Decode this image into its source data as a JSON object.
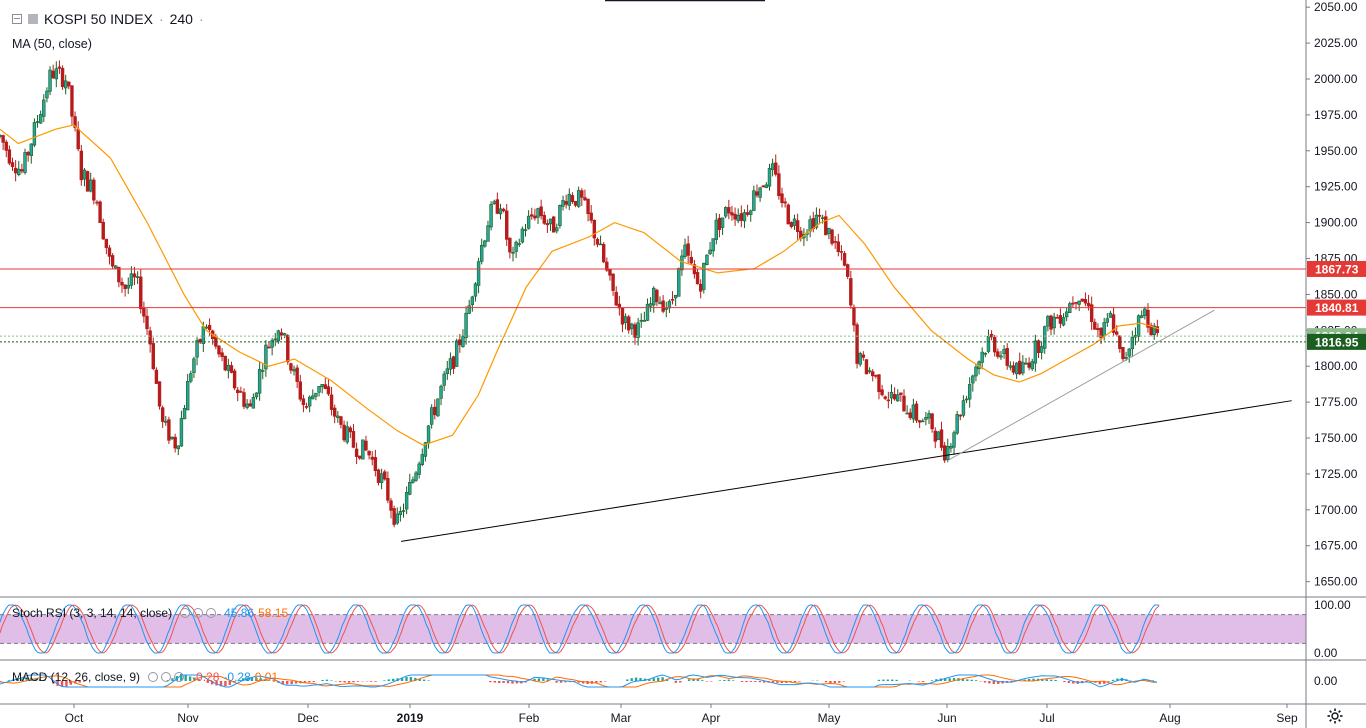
{
  "header": {
    "symbol": "KOSPI 50 INDEX",
    "interval": "240",
    "separator": "·"
  },
  "ma_label": "MA (50, close)",
  "stoch_label": {
    "text": "Stoch RSI (3, 3, 14, 14, close)",
    "k_value": "45.86",
    "d_value": "58.15"
  },
  "macd_label": {
    "text": "MACD (12, 26, close, 9)",
    "histogram": "-0.28",
    "macd": "-0.28",
    "signal": "0.01"
  },
  "icons": {
    "collapse": "collapse-icon",
    "settings": "gear-icon"
  },
  "colors": {
    "up": "#26a69a",
    "up_body": "#1b5e20",
    "down": "#b71c1c",
    "ma": "#ff9800",
    "resistance": "#e53935",
    "support": "#1b5e20",
    "last_price": "#8fbc8f",
    "stoch_k": "#2196f3",
    "stoch_d": "#ef5350",
    "stoch_band": "#e1bee7"
  },
  "chart_data": {
    "type": "candlestick",
    "title": "KOSPI 50 INDEX · 240",
    "x_axis": {
      "ticks": [
        "Oct",
        "Nov",
        "Dec",
        "2019",
        "Feb",
        "Mar",
        "Apr",
        "May",
        "Jun",
        "Jul",
        "Aug",
        "Sep"
      ]
    },
    "y_axis": {
      "range": [
        1640,
        2055
      ],
      "ticks": [
        1650,
        1675,
        1700,
        1725,
        1750,
        1775,
        1800,
        1825,
        1850,
        1875,
        1900,
        1925,
        1950,
        1975,
        2000,
        2025,
        2050
      ],
      "tick_labels": [
        "1650.00",
        "1675.00",
        "1700.00",
        "1725.00",
        "1750.00",
        "1775.00",
        "1800.00",
        "1825.00",
        "1850.00",
        "1875.00",
        "1900.00",
        "1925.00",
        "1950.00",
        "1975.00",
        "2000.00",
        "2025.00",
        "2050.00"
      ]
    },
    "price_path": [
      {
        "t": 0.0,
        "p": 1960
      },
      {
        "t": 0.3,
        "p": 1945
      },
      {
        "t": 0.6,
        "p": 1935
      },
      {
        "t": 1.0,
        "p": 1970
      },
      {
        "t": 1.4,
        "p": 2005
      },
      {
        "t": 1.8,
        "p": 2000
      },
      {
        "t": 2.2,
        "p": 1935
      },
      {
        "t": 2.6,
        "p": 1920
      },
      {
        "t": 3.0,
        "p": 1870
      },
      {
        "t": 3.4,
        "p": 1855
      },
      {
        "t": 3.7,
        "p": 1860
      },
      {
        "t": 4.1,
        "p": 1815
      },
      {
        "t": 4.4,
        "p": 1760
      },
      {
        "t": 4.8,
        "p": 1745
      },
      {
        "t": 5.2,
        "p": 1800
      },
      {
        "t": 5.6,
        "p": 1830
      },
      {
        "t": 5.9,
        "p": 1810
      },
      {
        "t": 6.3,
        "p": 1790
      },
      {
        "t": 6.8,
        "p": 1770
      },
      {
        "t": 7.2,
        "p": 1810
      },
      {
        "t": 7.6,
        "p": 1830
      },
      {
        "t": 7.9,
        "p": 1800
      },
      {
        "t": 8.3,
        "p": 1770
      },
      {
        "t": 8.7,
        "p": 1790
      },
      {
        "t": 9.2,
        "p": 1760
      },
      {
        "t": 9.6,
        "p": 1745
      },
      {
        "t": 10.0,
        "p": 1740
      },
      {
        "t": 10.4,
        "p": 1720
      },
      {
        "t": 10.8,
        "p": 1690
      },
      {
        "t": 11.2,
        "p": 1720
      },
      {
        "t": 11.6,
        "p": 1755
      },
      {
        "t": 12.0,
        "p": 1785
      },
      {
        "t": 12.4,
        "p": 1810
      },
      {
        "t": 12.7,
        "p": 1835
      },
      {
        "t": 13.0,
        "p": 1875
      },
      {
        "t": 13.3,
        "p": 1905
      },
      {
        "t": 13.6,
        "p": 1915
      },
      {
        "t": 13.9,
        "p": 1870
      },
      {
        "t": 14.2,
        "p": 1895
      },
      {
        "t": 14.6,
        "p": 1910
      },
      {
        "t": 15.0,
        "p": 1895
      },
      {
        "t": 15.4,
        "p": 1920
      },
      {
        "t": 15.8,
        "p": 1915
      },
      {
        "t": 16.2,
        "p": 1890
      },
      {
        "t": 16.6,
        "p": 1855
      },
      {
        "t": 17.0,
        "p": 1830
      },
      {
        "t": 17.4,
        "p": 1825
      },
      {
        "t": 17.8,
        "p": 1850
      },
      {
        "t": 18.2,
        "p": 1840
      },
      {
        "t": 18.6,
        "p": 1880
      },
      {
        "t": 19.0,
        "p": 1855
      },
      {
        "t": 19.4,
        "p": 1895
      },
      {
        "t": 19.8,
        "p": 1910
      },
      {
        "t": 20.2,
        "p": 1905
      },
      {
        "t": 20.6,
        "p": 1925
      },
      {
        "t": 21.0,
        "p": 1935
      },
      {
        "t": 21.4,
        "p": 1905
      },
      {
        "t": 21.8,
        "p": 1895
      },
      {
        "t": 22.2,
        "p": 1905
      },
      {
        "t": 22.6,
        "p": 1890
      },
      {
        "t": 23.0,
        "p": 1865
      },
      {
        "t": 23.3,
        "p": 1805
      },
      {
        "t": 23.7,
        "p": 1795
      },
      {
        "t": 24.1,
        "p": 1780
      },
      {
        "t": 24.5,
        "p": 1775
      },
      {
        "t": 24.9,
        "p": 1765
      },
      {
        "t": 25.3,
        "p": 1760
      },
      {
        "t": 25.7,
        "p": 1740
      },
      {
        "t": 26.1,
        "p": 1770
      },
      {
        "t": 26.5,
        "p": 1800
      },
      {
        "t": 26.9,
        "p": 1820
      },
      {
        "t": 27.3,
        "p": 1805
      },
      {
        "t": 27.7,
        "p": 1795
      },
      {
        "t": 28.1,
        "p": 1810
      },
      {
        "t": 28.5,
        "p": 1830
      },
      {
        "t": 28.9,
        "p": 1838
      },
      {
        "t": 29.3,
        "p": 1852
      },
      {
        "t": 29.6,
        "p": 1840
      },
      {
        "t": 29.9,
        "p": 1820
      },
      {
        "t": 30.2,
        "p": 1835
      },
      {
        "t": 30.5,
        "p": 1800
      },
      {
        "t": 30.8,
        "p": 1825
      },
      {
        "t": 31.1,
        "p": 1838
      },
      {
        "t": 31.5,
        "p": 1817
      }
    ],
    "ma50": [
      {
        "t": 0.0,
        "p": 1965
      },
      {
        "t": 0.5,
        "p": 1955
      },
      {
        "t": 1.5,
        "p": 1965
      },
      {
        "t": 2.0,
        "p": 1968
      },
      {
        "t": 3.0,
        "p": 1945
      },
      {
        "t": 4.0,
        "p": 1900
      },
      {
        "t": 5.0,
        "p": 1850
      },
      {
        "t": 5.6,
        "p": 1825
      },
      {
        "t": 6.5,
        "p": 1810
      },
      {
        "t": 7.3,
        "p": 1800
      },
      {
        "t": 8.0,
        "p": 1805
      },
      {
        "t": 9.0,
        "p": 1790
      },
      {
        "t": 10.0,
        "p": 1770
      },
      {
        "t": 10.8,
        "p": 1755
      },
      {
        "t": 11.5,
        "p": 1745
      },
      {
        "t": 12.3,
        "p": 1752
      },
      {
        "t": 13.0,
        "p": 1780
      },
      {
        "t": 13.5,
        "p": 1810
      },
      {
        "t": 14.3,
        "p": 1855
      },
      {
        "t": 15.0,
        "p": 1880
      },
      {
        "t": 16.0,
        "p": 1890
      },
      {
        "t": 16.7,
        "p": 1900
      },
      {
        "t": 17.5,
        "p": 1893
      },
      {
        "t": 18.5,
        "p": 1873
      },
      {
        "t": 19.5,
        "p": 1865
      },
      {
        "t": 20.5,
        "p": 1868
      },
      {
        "t": 21.3,
        "p": 1880
      },
      {
        "t": 22.3,
        "p": 1900
      },
      {
        "t": 22.8,
        "p": 1905
      },
      {
        "t": 23.5,
        "p": 1885
      },
      {
        "t": 24.3,
        "p": 1855
      },
      {
        "t": 25.3,
        "p": 1825
      },
      {
        "t": 26.3,
        "p": 1805
      },
      {
        "t": 27.0,
        "p": 1794
      },
      {
        "t": 27.7,
        "p": 1789
      },
      {
        "t": 28.3,
        "p": 1795
      },
      {
        "t": 29.0,
        "p": 1805
      },
      {
        "t": 29.7,
        "p": 1815
      },
      {
        "t": 30.4,
        "p": 1828
      },
      {
        "t": 31.0,
        "p": 1830
      },
      {
        "t": 31.5,
        "p": 1826
      }
    ],
    "horizontal_levels": [
      {
        "value": 1867.73,
        "label": "1867.73",
        "style": "resistance"
      },
      {
        "value": 1840.81,
        "label": "1840.81",
        "style": "resistance"
      },
      {
        "value": 1820.94,
        "label": "1820.94",
        "style": "last_price"
      },
      {
        "value": 1816.95,
        "label": "1816.95",
        "style": "support"
      }
    ],
    "trendlines": [
      {
        "from": {
          "t": 10.9,
          "p": 1678
        },
        "to": {
          "t": 35.1,
          "p": 1776
        },
        "color": "#000000"
      },
      {
        "from": {
          "t": 25.8,
          "p": 1735
        },
        "to": {
          "t": 33.0,
          "p": 1839
        },
        "color": "#9e9e9e"
      }
    ],
    "stoch_rsi": {
      "levels": [
        80,
        20
      ],
      "tick_labels": [
        "100.00",
        "0.00"
      ],
      "k_last": 45.86,
      "d_last": 58.15
    },
    "macd": {
      "tick_label": "0.00",
      "histogram_last": -0.28,
      "macd_last": -0.28,
      "signal_last": 0.01
    }
  }
}
